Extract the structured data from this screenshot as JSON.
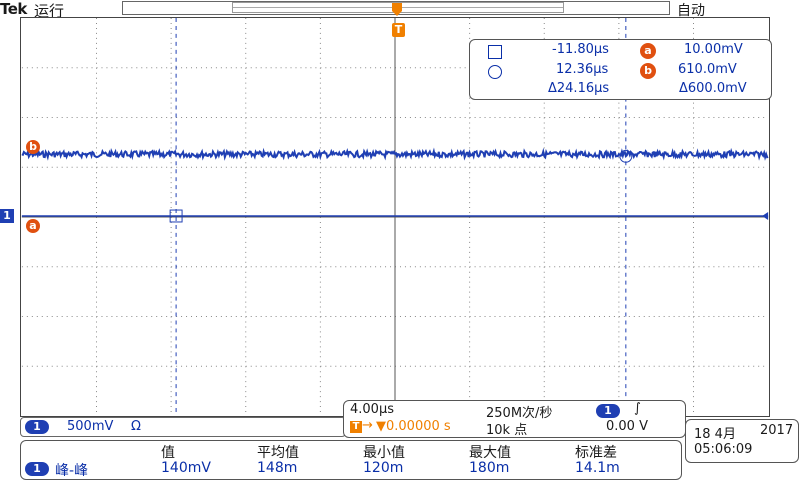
{
  "header": {
    "brand": "Tek",
    "run_state": "运行",
    "trigger_mode": "自动"
  },
  "trigger": {
    "badge": "T",
    "level_badge": "T"
  },
  "cursors": {
    "a_label": "a",
    "b_label": "b",
    "time1": "-11.80µs",
    "time2": "12.36µs",
    "delta_time": "Δ24.16µs",
    "volt_a": "10.00mV",
    "volt_b": "610.0mV",
    "delta_volt": "Δ600.0mV"
  },
  "waveform": {
    "trace_level_label": "b",
    "ref_label": "a",
    "channel_marker": "1"
  },
  "channel": {
    "number": "1",
    "scale": "500mV",
    "coupling_symbol": "Ω"
  },
  "timebase": {
    "horizontal_scale": "4.00µs",
    "sample_rate": "250M次/秒",
    "trigger_position": "▼0.00000 s",
    "record_length": "10k 点",
    "trigger_source": "1",
    "trigger_slope": "∫",
    "trigger_level": "0.00 V"
  },
  "datetime": {
    "date": "18 4月",
    "year": "2017",
    "time": "05:06:09"
  },
  "measurements": {
    "headers": [
      "值",
      "平均值",
      "最小值",
      "最大值",
      "标准差"
    ],
    "channel": "1",
    "name": "峰-峰",
    "values": [
      "140mV",
      "148m",
      "120m",
      "180m",
      "14.1m"
    ]
  },
  "colors": {
    "trace": "#1f3fb3",
    "accent": "#f08000",
    "cursor": "#e05010",
    "grid": "#666666"
  }
}
